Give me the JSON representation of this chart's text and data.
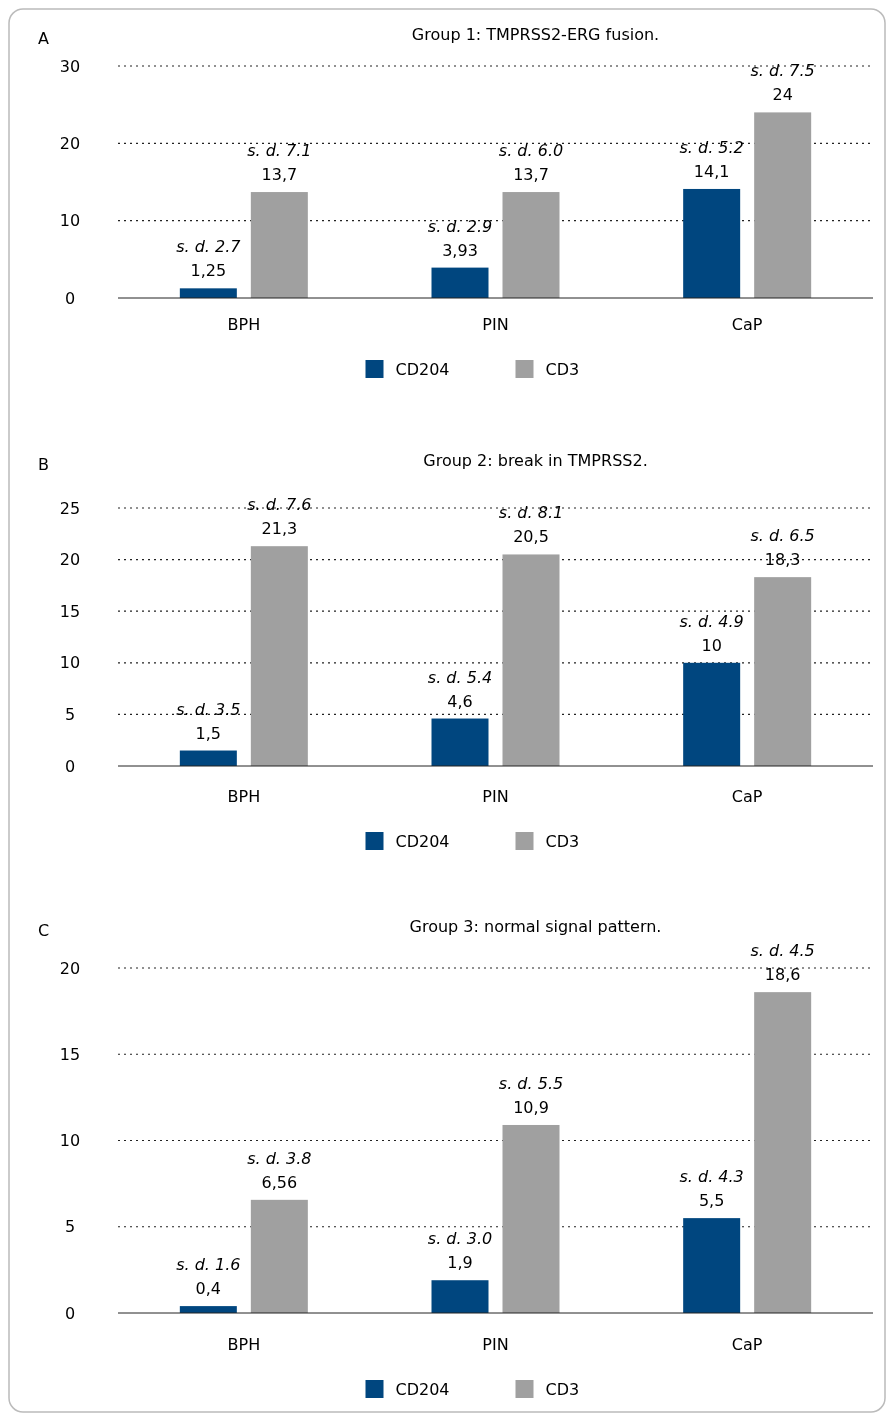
{
  "chart_data": [
    {
      "type": "bar",
      "title": "Group 1: TMPRSS2-ERG fusion.",
      "categories": [
        "BPH",
        "PIN",
        "CaP"
      ],
      "series": [
        {
          "name": "CD204",
          "color": "#00467f",
          "values": [
            1.25,
            3.93,
            14.1
          ],
          "value_labels": [
            "1,25",
            "3,93",
            "14,1"
          ]
        },
        {
          "name": "CD3",
          "color": "#a0a0a0",
          "values": [
            13.7,
            13.7,
            24
          ],
          "value_labels": [
            "13,7",
            "13,7",
            "24"
          ]
        }
      ],
      "ylim": [
        0,
        30
      ],
      "yticks": [
        0,
        10,
        20,
        30
      ],
      "grid": "y",
      "legend": "bottom",
      "annotations": [
        "A",
        "s. d. 2.7",
        "s. d. 7.1",
        "s. d. 2.9",
        "s. d. 6.0",
        "s. d. 5.2",
        "s. d. 7.5"
      ]
    },
    {
      "type": "bar",
      "title": "Group 2: break in TMPRSS2.",
      "categories": [
        "BPH",
        "PIN",
        "CaP"
      ],
      "series": [
        {
          "name": "CD204",
          "color": "#00467f",
          "values": [
            1.5,
            4.6,
            10
          ],
          "value_labels": [
            "1,5",
            "4,6",
            "10"
          ]
        },
        {
          "name": "CD3",
          "color": "#a0a0a0",
          "values": [
            21.3,
            20.5,
            18.3
          ],
          "value_labels": [
            "21,3",
            "20,5",
            "18,3"
          ]
        }
      ],
      "ylim": [
        0,
        25
      ],
      "yticks": [
        0,
        5,
        10,
        15,
        20,
        25
      ],
      "grid": "y",
      "legend": "bottom",
      "annotations": [
        "B",
        "s. d. 3.5",
        "s. d. 7.6",
        "s. d. 5.4",
        "s. d. 8.1",
        "s. d. 4.9",
        "s. d. 6.5"
      ]
    },
    {
      "type": "bar",
      "title": "Group 3: normal signal pattern.",
      "categories": [
        "BPH",
        "PIN",
        "CaP"
      ],
      "series": [
        {
          "name": "CD204",
          "color": "#00467f",
          "values": [
            0.4,
            1.9,
            5.5
          ],
          "value_labels": [
            "0,4",
            "1,9",
            "5,5"
          ]
        },
        {
          "name": "CD3",
          "color": "#a0a0a0",
          "values": [
            6.56,
            10.9,
            18.6
          ],
          "value_labels": [
            "6,56",
            "10,9",
            "18,6"
          ]
        }
      ],
      "ylim": [
        0,
        20
      ],
      "yticks": [
        0,
        5,
        10,
        15,
        20
      ],
      "grid": "y",
      "legend": "bottom",
      "annotations": [
        "C",
        "s. d. 1.6",
        "s. d. 3.8",
        "s. d. 3.0",
        "s. d. 5.5",
        "s. d. 4.3",
        "s. d. 4.5"
      ]
    }
  ]
}
